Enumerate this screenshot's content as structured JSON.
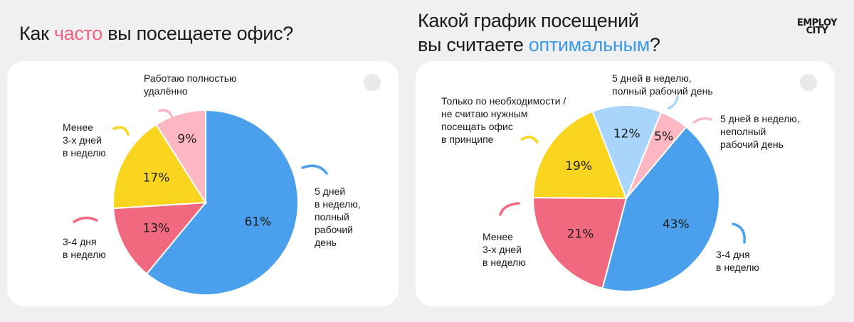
{
  "brand": {
    "logo_line1": "EMPLOY",
    "logo_line2": "CITY"
  },
  "colors": {
    "blue": "#4aa0ec",
    "pink": "#f0697f",
    "yellow": "#f9d51f",
    "light_pink": "#fdb7c3",
    "light_blue": "#a9d4fb"
  },
  "left_chart": {
    "title_pre": "Как ",
    "title_accent": "часто",
    "title_post": " вы посещаете офис?",
    "labels": {
      "remote": "Работаю полностью\nудалённо",
      "less3": "Менее\n3-х дней\nв неделю",
      "d34": "3-4 дня\nв неделю",
      "full5": "5 дней\nв неделю,\nполный\nрабочий\nдень"
    }
  },
  "right_chart": {
    "title_line1": "Какой график посещений",
    "title_pre": "вы считаете ",
    "title_accent": "оптимальным",
    "title_post": "?",
    "labels": {
      "need": "Только по необходимости /\nне считаю нужным\nпосещать офис\nв принципе",
      "full5": "5 дней в неделю,\nполный рабочий день",
      "part5": "5 дней в неделю,\nнеполный\nрабочий день",
      "less3": "Менее\n3-х дней\nв неделю",
      "d34": "3-4 дня\nв неделю"
    }
  },
  "chart_data": [
    {
      "type": "pie",
      "title": "Как часто вы посещаете офис?",
      "slices": [
        {
          "label": "5 дней в неделю, полный рабочий день",
          "value": 61,
          "display": "61%",
          "color": "#4aa0ec"
        },
        {
          "label": "3-4 дня в неделю",
          "value": 13,
          "display": "13%",
          "color": "#f0697f"
        },
        {
          "label": "Менее 3-х дней в неделю",
          "value": 17,
          "display": "17%",
          "color": "#f9d51f"
        },
        {
          "label": "Работаю полностью удалённо",
          "value": 9,
          "display": "9%",
          "color": "#fdb7c3"
        }
      ]
    },
    {
      "type": "pie",
      "title": "Какой график посещений вы считаете оптимальным?",
      "slices": [
        {
          "label": "5 дней в неделю, неполный рабочий день",
          "value": 5,
          "display": "5%",
          "color": "#fdb7c3"
        },
        {
          "label": "3-4 дня в неделю",
          "value": 43,
          "display": "43%",
          "color": "#4aa0ec"
        },
        {
          "label": "Менее 3-х дней в неделю",
          "value": 21,
          "display": "21%",
          "color": "#f0697f"
        },
        {
          "label": "Только по необходимости / не считаю нужным посещать офис в принципе",
          "value": 19,
          "display": "19%",
          "color": "#f9d51f"
        },
        {
          "label": "5 дней в неделю, полный рабочий день",
          "value": 12,
          "display": "12%",
          "color": "#a9d4fb"
        }
      ]
    }
  ]
}
